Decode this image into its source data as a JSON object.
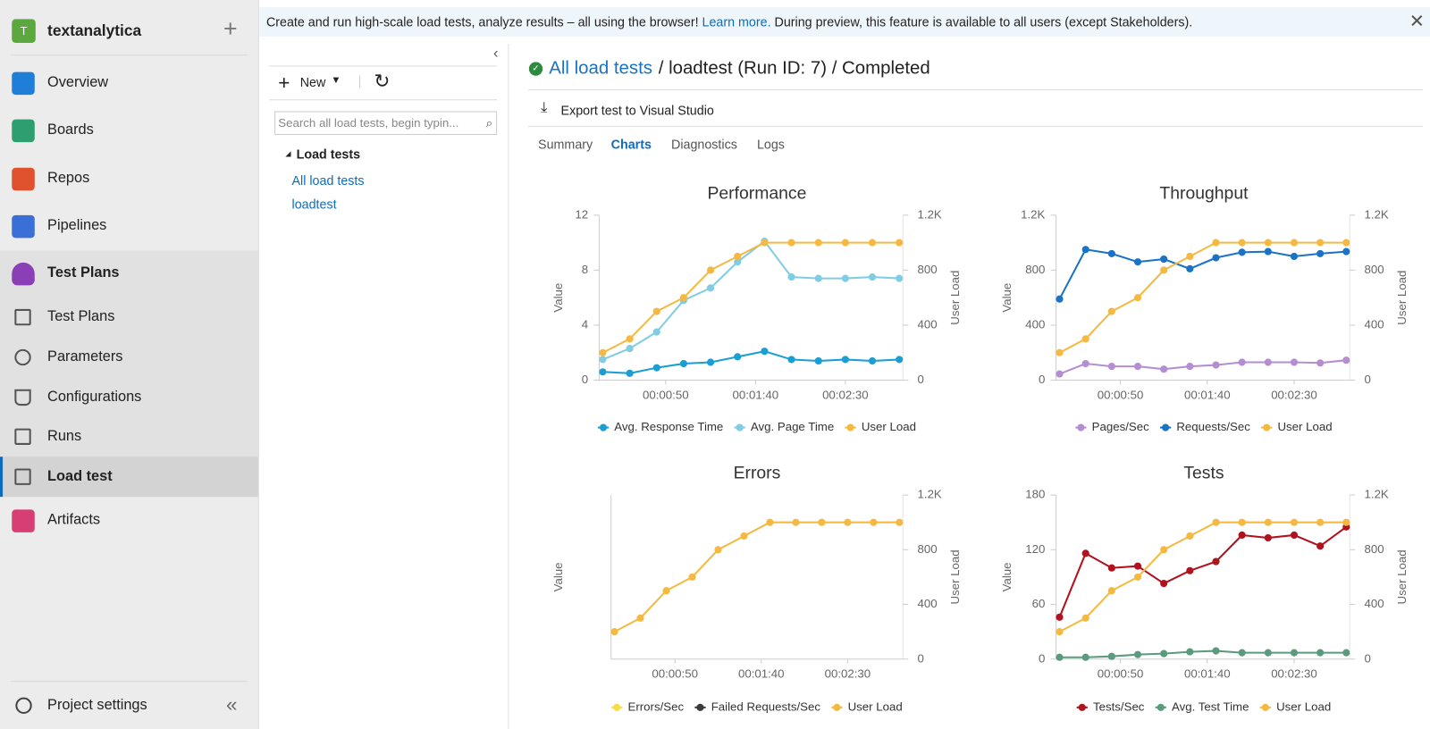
{
  "sidebar": {
    "org_initial": "T",
    "org": "textanalytica",
    "nav": [
      "Overview",
      "Boards",
      "Repos",
      "Pipelines",
      "Test Plans",
      "Test Plans",
      "Parameters",
      "Configurations",
      "Runs",
      "Load test",
      "Artifacts"
    ],
    "settings": "Project settings"
  },
  "banner": {
    "text1": "Create and run high-scale load tests, analyze results – all using the browser!",
    "link": "Learn more.",
    "text2": "During preview, this feature is available to all users (except Stakeholders)."
  },
  "pane": {
    "new": "New",
    "search_placeholder": "Search all load tests, begin typin...",
    "tree_header": "Load tests",
    "tree_items": [
      "All load tests",
      "loadtest"
    ]
  },
  "breadcrumb": {
    "link": "All load tests",
    "rest": "/ loadtest (Run ID: 7) / Completed"
  },
  "export": "Export test to Visual Studio",
  "tabs": [
    "Summary",
    "Charts",
    "Diagnostics",
    "Logs"
  ],
  "selected_tab": 1,
  "chart_data": [
    {
      "type": "line",
      "title": "Performance",
      "x": [
        15,
        30,
        45,
        60,
        75,
        90,
        105,
        120,
        135,
        150,
        165,
        180
      ],
      "xlim": [
        13,
        182
      ],
      "xticks": [
        {
          "value": 50,
          "label": "00:00:50"
        },
        {
          "value": 100,
          "label": "00:01:40"
        },
        {
          "value": 150,
          "label": "00:02:30"
        }
      ],
      "ylabel": "Value",
      "y2label": "User Load",
      "ylim": [
        0,
        12
      ],
      "yticks": [
        0,
        4,
        8,
        12
      ],
      "y2lim": [
        0,
        1200
      ],
      "y2ticks": [
        0,
        400,
        800,
        {
          "value": 1200,
          "label": "1.2K"
        }
      ],
      "legend": "bottom",
      "series": [
        {
          "name": "Avg. Response Time",
          "color": "#1a9ed4",
          "values": [
            0.6,
            0.5,
            0.9,
            1.2,
            1.3,
            1.7,
            2.1,
            1.5,
            1.4,
            1.5,
            1.4,
            1.5
          ]
        },
        {
          "name": "Avg. Page Time",
          "color": "#80cce3",
          "values": [
            1.5,
            2.3,
            3.5,
            5.8,
            6.7,
            8.6,
            10.1,
            7.5,
            7.4,
            7.4,
            7.5,
            7.4
          ]
        },
        {
          "name": "User Load",
          "color": "#f5b942",
          "axis": "y2",
          "values": [
            200,
            300,
            500,
            600,
            800,
            900,
            1000,
            1000,
            1000,
            1000,
            1000,
            1000
          ]
        }
      ]
    },
    {
      "type": "line",
      "title": "Throughput",
      "x": [
        15,
        30,
        45,
        60,
        75,
        90,
        105,
        120,
        135,
        150,
        165,
        180
      ],
      "xlim": [
        13,
        182
      ],
      "xticks": [
        {
          "value": 50,
          "label": "00:00:50"
        },
        {
          "value": 100,
          "label": "00:01:40"
        },
        {
          "value": 150,
          "label": "00:02:30"
        }
      ],
      "ylabel": "Value",
      "y2label": "User Load",
      "ylim": [
        0,
        1200
      ],
      "yticks": [
        0,
        400,
        800,
        {
          "value": 1200,
          "label": "1.2K"
        }
      ],
      "y2lim": [
        0,
        1200
      ],
      "y2ticks": [
        0,
        400,
        800,
        {
          "value": 1200,
          "label": "1.2K"
        }
      ],
      "legend": "bottom",
      "series": [
        {
          "name": "Pages/Sec",
          "color": "#b48ed0",
          "values": [
            45,
            120,
            100,
            100,
            80,
            100,
            110,
            130,
            130,
            130,
            125,
            145
          ]
        },
        {
          "name": "Requests/Sec",
          "color": "#1a73c4",
          "values": [
            590,
            950,
            920,
            860,
            880,
            810,
            890,
            930,
            935,
            900,
            920,
            935
          ]
        },
        {
          "name": "User Load",
          "color": "#f5b942",
          "axis": "y2",
          "values": [
            200,
            300,
            500,
            600,
            800,
            900,
            1000,
            1000,
            1000,
            1000,
            1000,
            1000
          ]
        }
      ]
    },
    {
      "type": "line",
      "title": "Errors",
      "x": [
        15,
        30,
        45,
        60,
        75,
        90,
        105,
        120,
        135,
        150,
        165,
        180
      ],
      "xlim": [
        13,
        182
      ],
      "xticks": [
        {
          "value": 50,
          "label": "00:00:50"
        },
        {
          "value": 100,
          "label": "00:01:40"
        },
        {
          "value": 150,
          "label": "00:02:30"
        }
      ],
      "ylabel": "Value",
      "y2label": "User Load",
      "y2lim": [
        0,
        1200
      ],
      "y2ticks": [
        0,
        400,
        800,
        {
          "value": 1200,
          "label": "1.2K"
        }
      ],
      "legend": "bottom",
      "series": [
        {
          "name": "Errors/Sec",
          "color": "#f7dc45",
          "values": [
            null,
            null,
            null,
            null,
            null,
            null,
            null,
            null,
            null,
            null,
            null,
            null
          ]
        },
        {
          "name": "Failed Requests/Sec",
          "color": "#3a3a3a",
          "values": [
            null,
            null,
            null,
            null,
            null,
            null,
            null,
            null,
            null,
            null,
            null,
            null
          ]
        },
        {
          "name": "User Load",
          "color": "#f5b942",
          "axis": "y2",
          "values": [
            200,
            300,
            500,
            600,
            800,
            900,
            1000,
            1000,
            1000,
            1000,
            1000,
            1000
          ]
        }
      ]
    },
    {
      "type": "line",
      "title": "Tests",
      "x": [
        15,
        30,
        45,
        60,
        75,
        90,
        105,
        120,
        135,
        150,
        165,
        180
      ],
      "xlim": [
        13,
        182
      ],
      "xticks": [
        {
          "value": 50,
          "label": "00:00:50"
        },
        {
          "value": 100,
          "label": "00:01:40"
        },
        {
          "value": 150,
          "label": "00:02:30"
        }
      ],
      "ylabel": "Value",
      "y2label": "User Load",
      "ylim": [
        0,
        180
      ],
      "yticks": [
        0,
        60,
        120,
        180
      ],
      "y2lim": [
        0,
        1200
      ],
      "y2ticks": [
        0,
        400,
        800,
        {
          "value": 1200,
          "label": "1.2K"
        }
      ],
      "legend": "bottom",
      "series": [
        {
          "name": "Tests/Sec",
          "color": "#b0121e",
          "values": [
            46,
            116,
            100,
            102,
            83,
            97,
            107,
            136,
            133,
            136,
            124,
            145
          ]
        },
        {
          "name": "Avg. Test Time",
          "color": "#5a9b7d",
          "values": [
            2,
            2,
            3,
            5,
            6,
            8,
            9,
            7,
            7,
            7,
            7,
            7
          ]
        },
        {
          "name": "User Load",
          "color": "#f5b942",
          "axis": "y2",
          "values": [
            200,
            300,
            500,
            600,
            800,
            900,
            1000,
            1000,
            1000,
            1000,
            1000,
            1000
          ]
        }
      ]
    }
  ]
}
